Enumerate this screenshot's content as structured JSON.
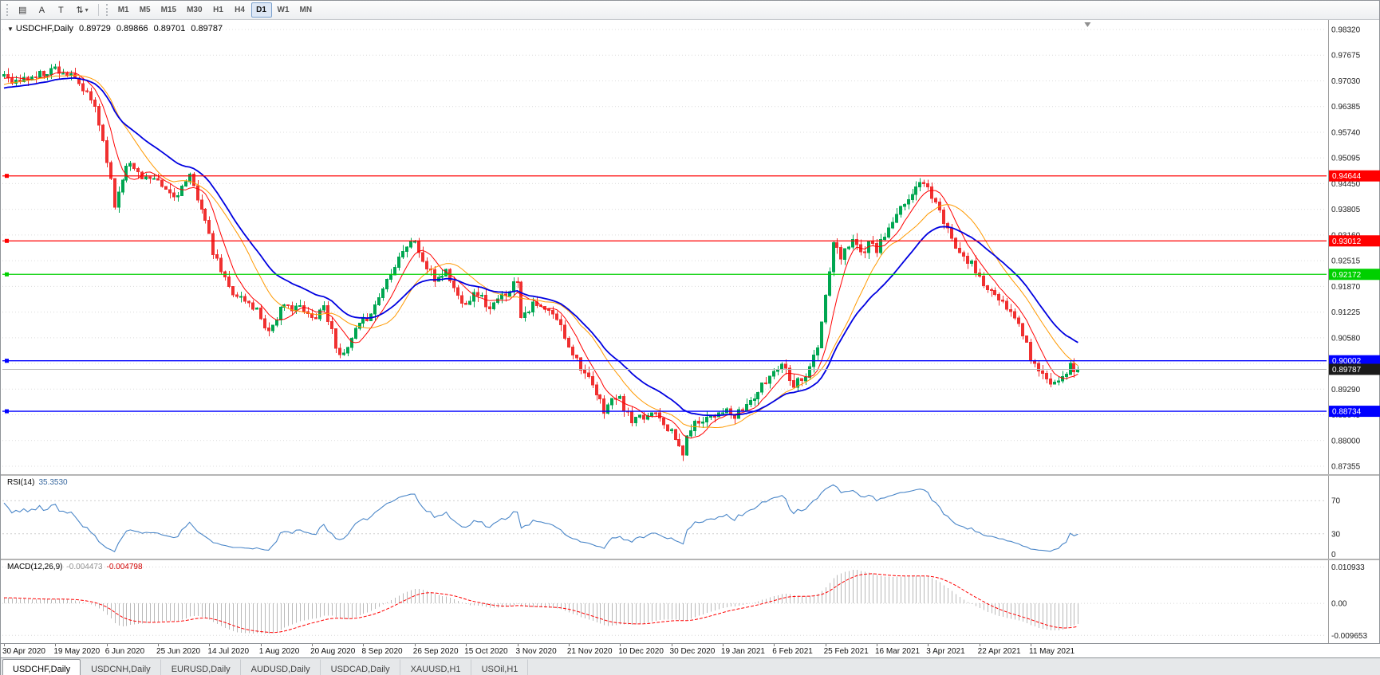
{
  "toolbar": {
    "icons": [
      {
        "name": "chart-grid-icon",
        "glyph": "▤"
      },
      {
        "name": "font-tool-icon",
        "glyph": "A"
      },
      {
        "name": "text-label-tool-icon",
        "glyph": "T"
      },
      {
        "name": "scale-arrows-icon",
        "glyph": "⇅"
      }
    ],
    "dropdown_caret": "▾",
    "timeframes": [
      "M1",
      "M5",
      "M15",
      "M30",
      "H1",
      "H4",
      "D1",
      "W1",
      "MN"
    ],
    "active_timeframe": "D1"
  },
  "chart_header": {
    "collapse_glyph": "▼",
    "symbol": "USDCHF,Daily",
    "open": "0.89729",
    "high": "0.89866",
    "low": "0.89701",
    "close": "0.89787"
  },
  "tabs": [
    {
      "label": "USDCHF,Daily",
      "active": true
    },
    {
      "label": "USDCNH,Daily",
      "active": false
    },
    {
      "label": "EURUSD,Daily",
      "active": false
    },
    {
      "label": "AUDUSD,Daily",
      "active": false
    },
    {
      "label": "USDCAD,Daily",
      "active": false
    },
    {
      "label": "XAUUSD,H1",
      "active": false
    },
    {
      "label": "USOil,H1",
      "active": false
    }
  ],
  "chart_data": {
    "type": "candlestick",
    "symbol": "USDCHF",
    "timeframe": "Daily",
    "bars": 273,
    "seed": 11,
    "noise": 0.0011,
    "wick": 0.0016,
    "grid_color": "#dcdcdc",
    "price_axis": {
      "top": 0.9832,
      "bottom": 0.87355,
      "ticks": [
        "0.98320",
        "0.97675",
        "0.97030",
        "0.96385",
        "0.95740",
        "0.95095",
        "0.94450",
        "0.93805",
        "0.93160",
        "0.92515",
        "0.91870",
        "0.91225",
        "0.90580",
        "0.89935",
        "0.89290",
        "0.88645",
        "0.88000",
        "0.87355"
      ]
    },
    "candles": {
      "up": "#00a651",
      "down": "#f03030"
    },
    "moving_averages": [
      {
        "name": "ma-fast-red-line",
        "period": 7,
        "type": "sma",
        "color": "#ff0000",
        "width": 1
      },
      {
        "name": "ma-mid-orange-line",
        "period": 16,
        "type": "sma",
        "color": "#ff9900",
        "width": 1
      },
      {
        "name": "ma-slow-blue-line",
        "period": 25,
        "type": "ema",
        "color": "#0000e0",
        "width": 1.8
      }
    ],
    "hlines": [
      {
        "price": 0.94644,
        "label": "0.94644",
        "color": "#ff0000"
      },
      {
        "price": 0.93012,
        "label": "0.93012",
        "color": "#ff0000"
      },
      {
        "price": 0.92172,
        "label": "0.92172",
        "color": "#00d000"
      },
      {
        "price": 0.90002,
        "label": "0.90002",
        "color": "#0000ff"
      },
      {
        "price": 0.88734,
        "label": "0.88734",
        "color": "#0000ff"
      }
    ],
    "current_price": {
      "value": 0.89787,
      "label": "0.89787",
      "line_color": "#b8b8b8",
      "badge_color": "#1a1a1a"
    },
    "rsi": {
      "label": "RSI(14)",
      "value": "35.3530",
      "period": 14,
      "color": "#4a86c8",
      "axis_ticks": [
        {
          "label": "70",
          "value": 70
        },
        {
          "label": "30",
          "value": 30
        },
        {
          "label": "0",
          "value": 0
        }
      ]
    },
    "macd": {
      "label": "MACD(12,26,9)",
      "value_main": "-0.004473",
      "value_signal": "-0.004798",
      "fast": 12,
      "slow": 26,
      "signal": 9,
      "hist_color": "#b8b8b8",
      "signal_color": "#ff0000",
      "scale_max": 0.0125,
      "scale_min": -0.0115,
      "axis_ticks": [
        {
          "label": "0.010933",
          "value": 0.010933
        },
        {
          "label": "0.00",
          "value": 0.0
        },
        {
          "label": "-0.009653",
          "value": -0.009653
        }
      ]
    },
    "date_labels": [
      "30 Apr 2020",
      "19 May 2020",
      "6 Jun 2020",
      "25 Jun 2020",
      "14 Jul 2020",
      "1 Aug 2020",
      "20 Aug 2020",
      "8 Sep 2020",
      "26 Sep 2020",
      "15 Oct 2020",
      "3 Nov 2020",
      "21 Nov 2020",
      "10 Dec 2020",
      "30 Dec 2020",
      "19 Jan 2021",
      "6 Feb 2021",
      "25 Feb 2021",
      "16 Mar 2021",
      "3 Apr 2021",
      "22 Apr 2021",
      "11 May 2021"
    ],
    "label_every_bars": 13,
    "waypoints": [
      [
        -60,
        0.956
      ],
      [
        -40,
        0.962
      ],
      [
        -20,
        0.9665
      ],
      [
        -8,
        0.969
      ],
      [
        0,
        0.972
      ],
      [
        3,
        0.97
      ],
      [
        8,
        0.9715
      ],
      [
        13,
        0.9735
      ],
      [
        16,
        0.972
      ],
      [
        19,
        0.9693
      ],
      [
        23,
        0.964
      ],
      [
        26,
        0.9509
      ],
      [
        28,
        0.939
      ],
      [
        31,
        0.9498
      ],
      [
        35,
        0.9466
      ],
      [
        39,
        0.9444
      ],
      [
        43,
        0.9412
      ],
      [
        47,
        0.9458
      ],
      [
        50,
        0.9389
      ],
      [
        53,
        0.927
      ],
      [
        57,
        0.9183
      ],
      [
        61,
        0.915
      ],
      [
        64,
        0.9128
      ],
      [
        67,
        0.9074
      ],
      [
        70,
        0.9128
      ],
      [
        74,
        0.9139
      ],
      [
        78,
        0.9106
      ],
      [
        81,
        0.9139
      ],
      [
        84,
        0.9041
      ],
      [
        86,
        0.9009
      ],
      [
        89,
        0.9074
      ],
      [
        91,
        0.9096
      ],
      [
        94,
        0.9139
      ],
      [
        98,
        0.9226
      ],
      [
        101,
        0.928
      ],
      [
        104,
        0.9302
      ],
      [
        106,
        0.9248
      ],
      [
        109,
        0.9204
      ],
      [
        112,
        0.9226
      ],
      [
        115,
        0.9161
      ],
      [
        117,
        0.915
      ],
      [
        120,
        0.9172
      ],
      [
        123,
        0.9128
      ],
      [
        126,
        0.9161
      ],
      [
        128,
        0.9183
      ],
      [
        130,
        0.9204
      ],
      [
        131,
        0.9117
      ],
      [
        134,
        0.9139
      ],
      [
        137,
        0.9128
      ],
      [
        140,
        0.9106
      ],
      [
        143,
        0.9041
      ],
      [
        146,
        0.8987
      ],
      [
        149,
        0.8932
      ],
      [
        152,
        0.8878
      ],
      [
        155,
        0.8911
      ],
      [
        156,
        0.89
      ],
      [
        159,
        0.8845
      ],
      [
        162,
        0.8856
      ],
      [
        165,
        0.8878
      ],
      [
        168,
        0.8834
      ],
      [
        170,
        0.8801
      ],
      [
        172,
        0.8769
      ],
      [
        174,
        0.8834
      ],
      [
        177,
        0.8856
      ],
      [
        180,
        0.8867
      ],
      [
        182,
        0.8878
      ],
      [
        185,
        0.8856
      ],
      [
        188,
        0.8889
      ],
      [
        191,
        0.8921
      ],
      [
        195,
        0.8976
      ],
      [
        197,
        0.8997
      ],
      [
        200,
        0.8943
      ],
      [
        203,
        0.8965
      ],
      [
        206,
        0.903
      ],
      [
        208,
        0.9161
      ],
      [
        210,
        0.9291
      ],
      [
        212,
        0.9259
      ],
      [
        215,
        0.9313
      ],
      [
        217,
        0.927
      ],
      [
        219,
        0.9291
      ],
      [
        221,
        0.928
      ],
      [
        223,
        0.9313
      ],
      [
        225,
        0.9346
      ],
      [
        227,
        0.9378
      ],
      [
        229,
        0.9411
      ],
      [
        231,
        0.9432
      ],
      [
        233,
        0.9455
      ],
      [
        234,
        0.9432
      ],
      [
        236,
        0.94
      ],
      [
        238,
        0.9346
      ],
      [
        240,
        0.9302
      ],
      [
        243,
        0.927
      ],
      [
        246,
        0.9226
      ],
      [
        248,
        0.9193
      ],
      [
        251,
        0.9161
      ],
      [
        254,
        0.9128
      ],
      [
        257,
        0.9096
      ],
      [
        260,
        0.9009
      ],
      [
        262,
        0.8976
      ],
      [
        264,
        0.8954
      ],
      [
        266,
        0.8943
      ],
      [
        268,
        0.8965
      ],
      [
        270,
        0.8985
      ],
      [
        272,
        0.89787
      ]
    ]
  }
}
